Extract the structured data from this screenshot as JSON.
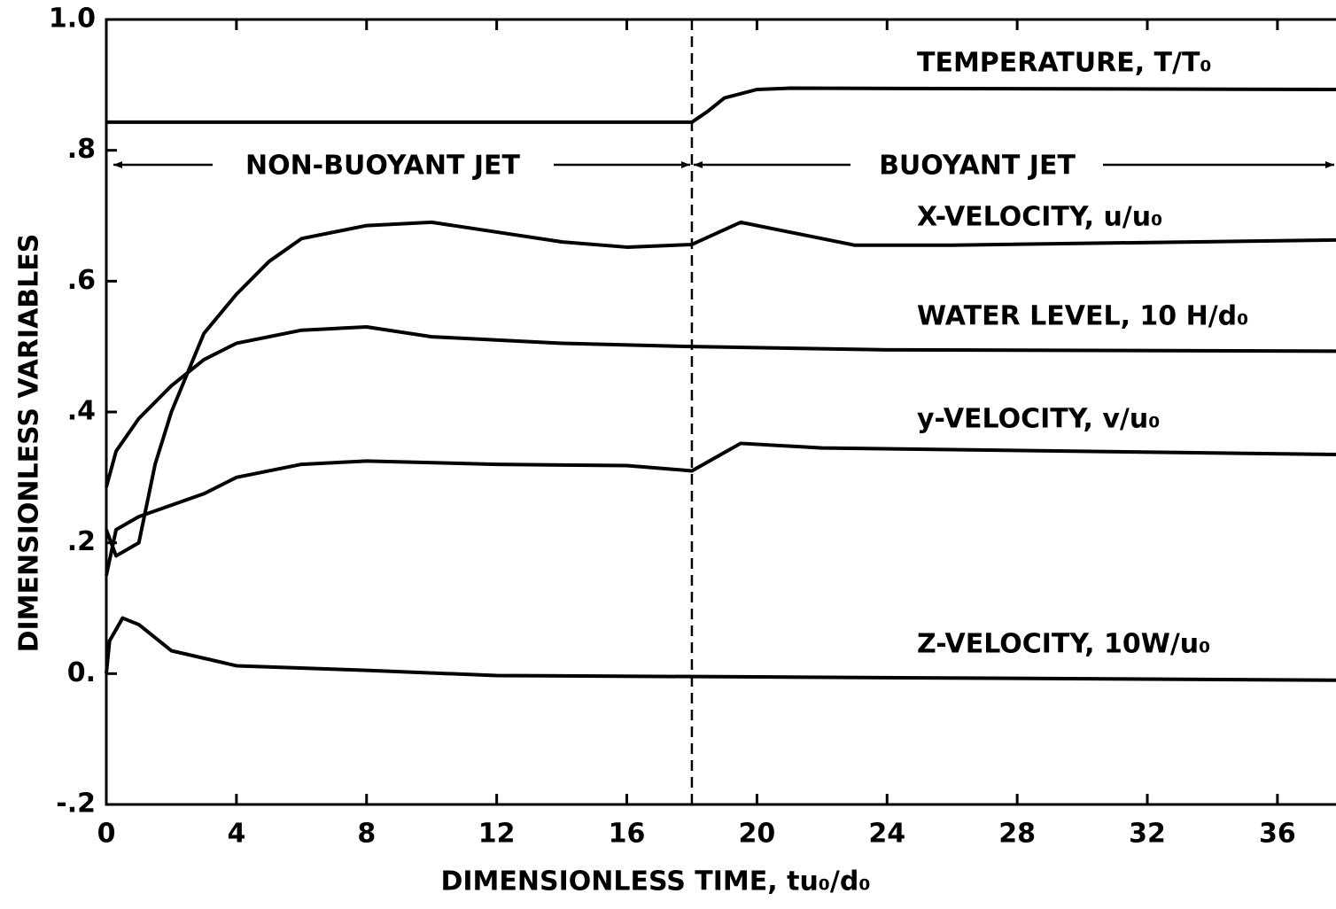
{
  "chart_data": {
    "type": "line",
    "xlabel": "DIMENSIONLESS TIME, tu₀/d₀",
    "ylabel": "DIMENSIONLESS VARIABLES",
    "annotations": [
      "NON-BUOYANT JET",
      "BUOYANT JET"
    ],
    "vline": 18,
    "xlim": [
      0,
      37.8
    ],
    "xticks": [
      0,
      4,
      8,
      12,
      16,
      20,
      24,
      28,
      32,
      36
    ],
    "ylim": [
      -0.2,
      1.0
    ],
    "yticks": [
      {
        "value": -0.2,
        "label": "-.2"
      },
      {
        "value": 0,
        "label": "0."
      },
      {
        "value": 0.2,
        "label": ".2"
      },
      {
        "value": 0.4,
        "label": ".4"
      },
      {
        "value": 0.6,
        "label": ".6"
      },
      {
        "value": 0.8,
        "label": ".8"
      },
      {
        "value": 1,
        "label": "1.0"
      }
    ],
    "series": [
      {
        "name": "TEMPERATURE, T/T₀",
        "color": "#000000",
        "x": [
          0,
          18,
          18.5,
          19,
          20,
          21,
          37.8
        ],
        "values": [
          0.843,
          0.843,
          0.86,
          0.88,
          0.893,
          0.895,
          0.893
        ]
      },
      {
        "name": "X-VELOCITY, u/u₀",
        "color": "#000000",
        "x": [
          0,
          0.3,
          1,
          1.5,
          2,
          3,
          4,
          5,
          6,
          8,
          10,
          12,
          14,
          16,
          18,
          19.5,
          21,
          23,
          26,
          37.8
        ],
        "values": [
          0.22,
          0.18,
          0.2,
          0.32,
          0.4,
          0.52,
          0.58,
          0.63,
          0.665,
          0.685,
          0.69,
          0.675,
          0.66,
          0.652,
          0.656,
          0.69,
          0.675,
          0.655,
          0.655,
          0.663
        ]
      },
      {
        "name": "WATER LEVEL, 10 H/d₀",
        "color": "#000000",
        "x": [
          0,
          0.3,
          1,
          2,
          3,
          4,
          6,
          8,
          10,
          14,
          18,
          24,
          37.8
        ],
        "values": [
          0.285,
          0.34,
          0.39,
          0.44,
          0.48,
          0.505,
          0.525,
          0.53,
          0.515,
          0.505,
          0.5,
          0.495,
          0.493
        ]
      },
      {
        "name": "y-VELOCITY, v/u₀",
        "color": "#000000",
        "x": [
          0,
          0.3,
          1,
          3,
          4,
          6,
          8,
          12,
          16,
          18,
          19.5,
          22,
          37.8
        ],
        "values": [
          0.15,
          0.22,
          0.24,
          0.275,
          0.3,
          0.32,
          0.325,
          0.32,
          0.318,
          0.31,
          0.352,
          0.345,
          0.335
        ]
      },
      {
        "name": "Z-VELOCITY, 10W/u₀",
        "color": "#000000",
        "x": [
          0,
          0.1,
          0.5,
          1,
          2,
          4,
          8,
          12,
          20,
          37.8
        ],
        "values": [
          0.0,
          0.05,
          0.085,
          0.075,
          0.035,
          0.012,
          0.005,
          -0.003,
          -0.005,
          -0.01
        ]
      }
    ]
  }
}
